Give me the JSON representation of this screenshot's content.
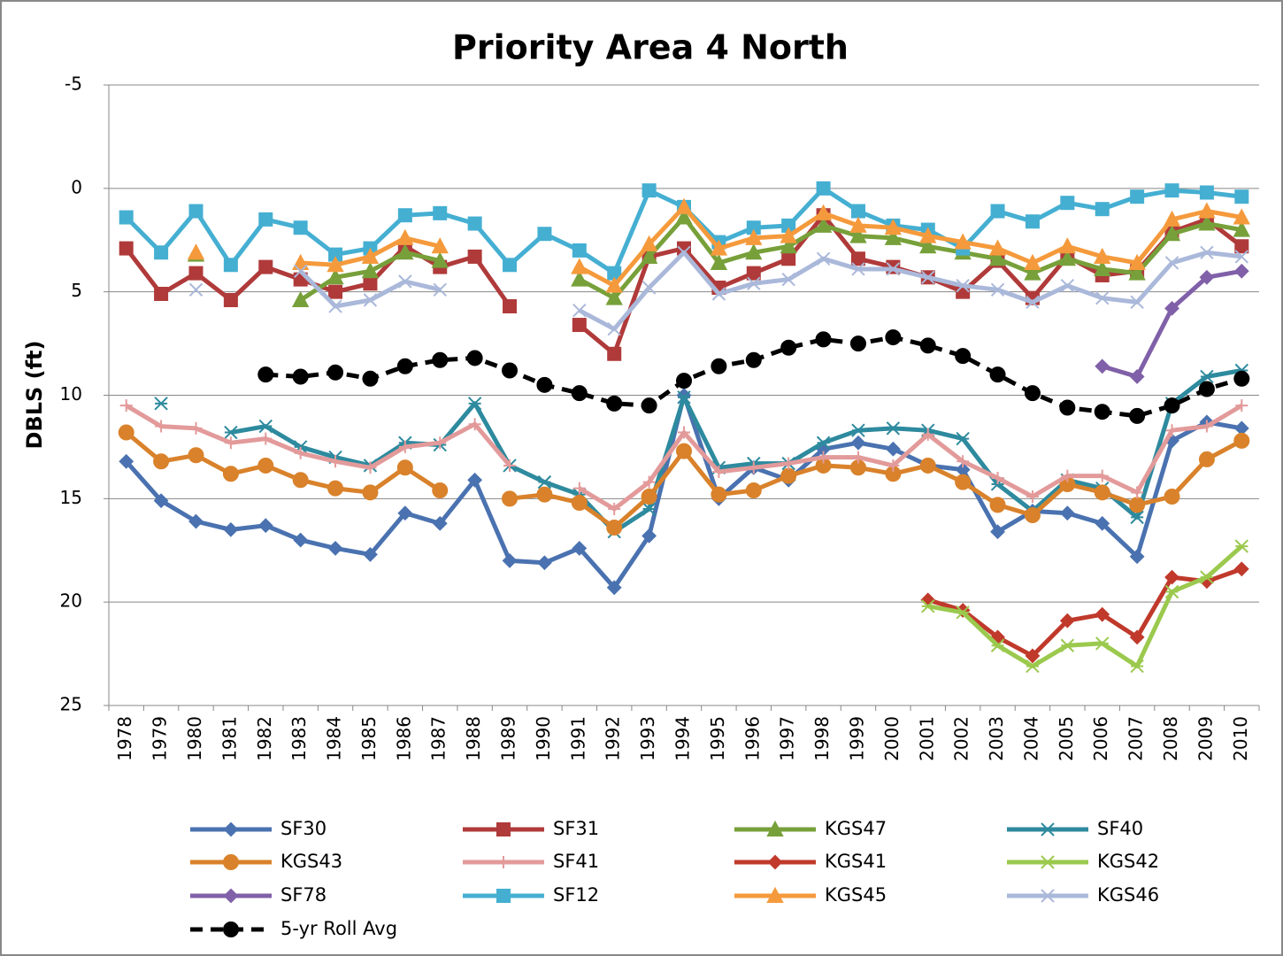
{
  "chart_data": {
    "type": "line",
    "title": "Priority Area 4 North",
    "y_label": "DBLS (ft)",
    "categories": [
      "1978",
      "1979",
      "1980",
      "1981",
      "1982",
      "1983",
      "1984",
      "1985",
      "1986",
      "1987",
      "1988",
      "1989",
      "1990",
      "1991",
      "1992",
      "1993",
      "1994",
      "1995",
      "1996",
      "1997",
      "1998",
      "1999",
      "2000",
      "2001",
      "2002",
      "2003",
      "2004",
      "2005",
      "2006",
      "2007",
      "2008",
      "2009",
      "2010"
    ],
    "ylim": [
      -5,
      25
    ],
    "y_reversed": true,
    "yticks": [
      -5,
      0,
      5,
      10,
      15,
      20,
      25
    ],
    "grid": true,
    "legend": "bottom",
    "series": [
      {
        "name": "SF30",
        "color": "#4a72b0",
        "marker": "diamond",
        "values": [
          13.2,
          15.1,
          16.1,
          16.5,
          16.3,
          17.0,
          17.4,
          17.7,
          15.7,
          16.2,
          14.1,
          18.0,
          18.1,
          17.4,
          19.3,
          16.8,
          10.0,
          15.0,
          13.5,
          14.1,
          12.6,
          12.3,
          12.6,
          13.4,
          13.6,
          16.6,
          15.6,
          15.7,
          16.2,
          17.8,
          12.2,
          11.3,
          11.6
        ]
      },
      {
        "name": "SF31",
        "color": "#b03a3a",
        "marker": "square",
        "values": [
          2.9,
          5.1,
          4.1,
          5.4,
          3.8,
          4.4,
          5.0,
          4.6,
          2.8,
          3.8,
          3.3,
          5.7,
          null,
          6.6,
          8.0,
          3.3,
          2.9,
          4.8,
          4.1,
          3.4,
          1.3,
          3.4,
          3.8,
          4.3,
          5.0,
          3.5,
          5.3,
          3.3,
          4.2,
          4.0,
          2.1,
          1.5,
          2.8
        ]
      },
      {
        "name": "KGS47",
        "color": "#77a03a",
        "marker": "triangle",
        "values": [
          null,
          null,
          3.2,
          null,
          null,
          5.4,
          4.3,
          4.0,
          3.1,
          3.5,
          null,
          null,
          null,
          4.4,
          5.3,
          3.3,
          1.4,
          3.6,
          3.1,
          2.8,
          1.8,
          2.3,
          2.4,
          2.8,
          3.1,
          3.4,
          4.1,
          3.4,
          3.9,
          4.1,
          2.2,
          1.7,
          2.0
        ]
      },
      {
        "name": "SF40",
        "color": "#2e8a9e",
        "marker": "asterisk",
        "values": [
          null,
          10.4,
          null,
          11.8,
          11.5,
          12.5,
          13.0,
          13.4,
          12.3,
          12.4,
          10.4,
          13.4,
          14.2,
          14.8,
          16.6,
          15.5,
          10.1,
          13.5,
          13.3,
          13.3,
          12.3,
          11.7,
          11.6,
          11.7,
          12.1,
          14.3,
          15.6,
          14.1,
          14.5,
          15.9,
          10.4,
          9.1,
          8.8
        ]
      },
      {
        "name": "KGS43",
        "color": "#d9822b",
        "marker": "circle",
        "values": [
          11.8,
          13.2,
          12.9,
          13.8,
          13.4,
          14.1,
          14.5,
          14.7,
          13.5,
          14.6,
          null,
          15.0,
          14.8,
          15.2,
          16.4,
          14.9,
          12.7,
          14.8,
          14.6,
          13.9,
          13.4,
          13.5,
          13.8,
          13.4,
          14.2,
          15.3,
          15.8,
          14.3,
          14.7,
          15.3,
          14.9,
          13.1,
          12.2
        ]
      },
      {
        "name": "SF41",
        "color": "#e39a9a",
        "marker": "plus",
        "values": [
          10.5,
          11.5,
          11.6,
          12.3,
          12.1,
          12.8,
          13.2,
          13.5,
          12.5,
          12.3,
          11.4,
          13.4,
          null,
          14.5,
          15.5,
          14.2,
          11.8,
          13.7,
          13.5,
          13.3,
          13.0,
          13.0,
          13.4,
          11.9,
          13.2,
          14.0,
          14.9,
          13.9,
          13.9,
          14.7,
          11.7,
          11.5,
          10.5
        ]
      },
      {
        "name": "KGS41",
        "color": "#c0392b",
        "marker": "diamond",
        "values": [
          null,
          null,
          null,
          null,
          null,
          null,
          null,
          null,
          null,
          null,
          null,
          null,
          null,
          null,
          null,
          null,
          null,
          null,
          null,
          null,
          null,
          null,
          null,
          19.9,
          20.4,
          21.7,
          22.6,
          20.9,
          20.6,
          21.7,
          18.8,
          19.0,
          18.4
        ]
      },
      {
        "name": "KGS42",
        "color": "#9bc94e",
        "marker": "asterisk",
        "values": [
          null,
          null,
          null,
          null,
          null,
          null,
          null,
          null,
          null,
          null,
          null,
          null,
          null,
          null,
          null,
          null,
          null,
          null,
          null,
          null,
          null,
          null,
          null,
          20.2,
          20.5,
          22.1,
          23.1,
          22.1,
          22.0,
          23.1,
          19.5,
          18.8,
          17.3
        ]
      },
      {
        "name": "SF78",
        "color": "#8060a8",
        "marker": "diamond",
        "values": [
          null,
          null,
          null,
          null,
          null,
          null,
          null,
          null,
          null,
          null,
          null,
          null,
          null,
          null,
          null,
          null,
          null,
          null,
          null,
          null,
          null,
          null,
          null,
          null,
          null,
          null,
          null,
          null,
          8.6,
          9.1,
          5.8,
          4.3,
          4.0
        ]
      },
      {
        "name": "SF12",
        "color": "#45afd2",
        "marker": "square",
        "values": [
          1.4,
          3.1,
          1.1,
          3.7,
          1.5,
          1.9,
          3.2,
          2.9,
          1.3,
          1.2,
          1.7,
          3.7,
          2.2,
          3.0,
          4.1,
          0.1,
          0.9,
          2.6,
          1.9,
          1.8,
          0.0,
          1.1,
          1.8,
          2.0,
          2.9,
          1.1,
          1.6,
          0.7,
          1.0,
          0.4,
          0.1,
          0.2,
          0.4
        ]
      },
      {
        "name": "KGS45",
        "color": "#f59a3c",
        "marker": "triangle",
        "values": [
          null,
          null,
          3.1,
          null,
          null,
          3.6,
          3.7,
          3.3,
          2.4,
          2.8,
          null,
          null,
          null,
          3.8,
          4.7,
          2.7,
          0.9,
          2.9,
          2.4,
          2.3,
          1.2,
          1.8,
          1.9,
          2.3,
          2.6,
          2.9,
          3.6,
          2.8,
          3.3,
          3.6,
          1.5,
          1.1,
          1.4
        ]
      },
      {
        "name": "KGS46",
        "color": "#aab8da",
        "marker": "x",
        "values": [
          null,
          null,
          4.9,
          null,
          null,
          4.0,
          5.7,
          5.4,
          4.5,
          4.9,
          null,
          null,
          null,
          5.9,
          6.8,
          4.8,
          3.1,
          5.1,
          4.6,
          4.4,
          3.4,
          3.9,
          3.9,
          4.3,
          4.7,
          4.9,
          5.5,
          4.7,
          5.3,
          5.5,
          3.6,
          3.1,
          3.3
        ]
      },
      {
        "name": "5-yr Roll Avg",
        "color": "#000000",
        "marker": "circle",
        "dashed": true,
        "values": [
          null,
          null,
          null,
          null,
          9.0,
          9.1,
          8.9,
          9.2,
          8.6,
          8.3,
          8.2,
          8.8,
          9.5,
          9.9,
          10.4,
          10.5,
          9.3,
          8.6,
          8.3,
          7.7,
          7.3,
          7.5,
          7.2,
          7.6,
          8.1,
          9.0,
          9.9,
          10.6,
          10.8,
          11.0,
          10.5,
          9.7,
          9.2
        ]
      }
    ]
  }
}
